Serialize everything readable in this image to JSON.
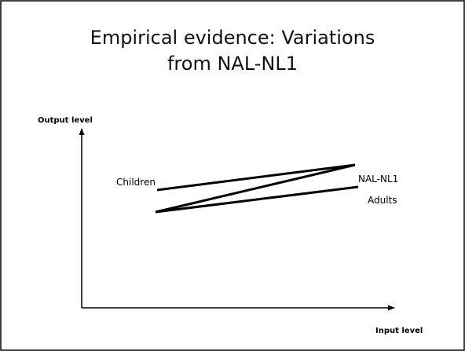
{
  "slide": {
    "title": [
      "Empirical evidence: Variations",
      "from NAL-NL1"
    ],
    "y_axis_label": "Output level",
    "x_axis_label": "Input level",
    "curves": [
      {
        "label": "Children"
      },
      {
        "label": "NAL-NL1"
      },
      {
        "label": "Adults"
      }
    ]
  }
}
